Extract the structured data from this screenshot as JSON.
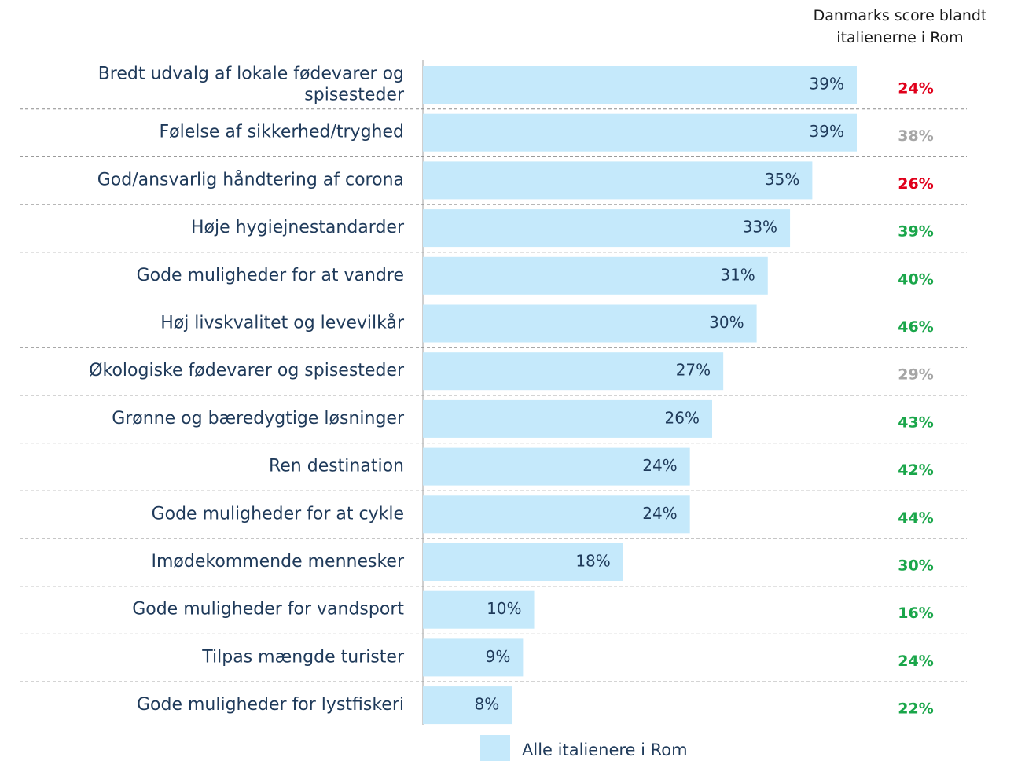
{
  "chart_data": {
    "type": "barh",
    "categories": [
      "Bredt udvalg af lokale fødevarer og\nspisesteder",
      "Følelse af sikkerhed/tryghed",
      "God/ansvarlig håndtering af corona",
      "Høje hygiejnestandarder",
      "Gode muligheder for at vandre",
      "Høj livskvalitet og levevilkår",
      "Økologiske fødevarer og spisesteder",
      "Grønne og bæredygtige løsninger",
      "Ren destination",
      "Gode muligheder for at cykle",
      "Imødekommende mennesker",
      "Gode muligheder for vandsport",
      "Tilpas mængde turister",
      "Gode muligheder for lystfiskeri"
    ],
    "series": [
      {
        "name": "Alle italienere i Rom",
        "color": "#c5e9fb",
        "values": [
          39,
          39,
          35,
          33,
          31,
          30,
          27,
          26,
          24,
          24,
          18,
          10,
          9,
          8
        ],
        "value_labels": [
          "39%",
          "39%",
          "35%",
          "33%",
          "31%",
          "30%",
          "27%",
          "26%",
          "24%",
          "24%",
          "18%",
          "10%",
          "9%",
          "8%"
        ]
      }
    ],
    "xlim": [
      0,
      39
    ],
    "comparison": {
      "title": "Danmarks score blandt\nitalienerne i Rom",
      "values": [
        24,
        38,
        26,
        39,
        40,
        46,
        29,
        43,
        42,
        44,
        30,
        16,
        24,
        22
      ],
      "value_labels": [
        "24%",
        "38%",
        "26%",
        "39%",
        "40%",
        "46%",
        "29%",
        "43%",
        "42%",
        "44%",
        "30%",
        "16%",
        "24%",
        "22%"
      ],
      "colors": [
        "#e0001b",
        "#a6a6a6",
        "#e0001b",
        "#1aa64a",
        "#1aa64a",
        "#1aa64a",
        "#a6a6a6",
        "#1aa64a",
        "#1aa64a",
        "#1aa64a",
        "#1aa64a",
        "#1aa64a",
        "#1aa64a",
        "#1aa64a"
      ]
    }
  }
}
